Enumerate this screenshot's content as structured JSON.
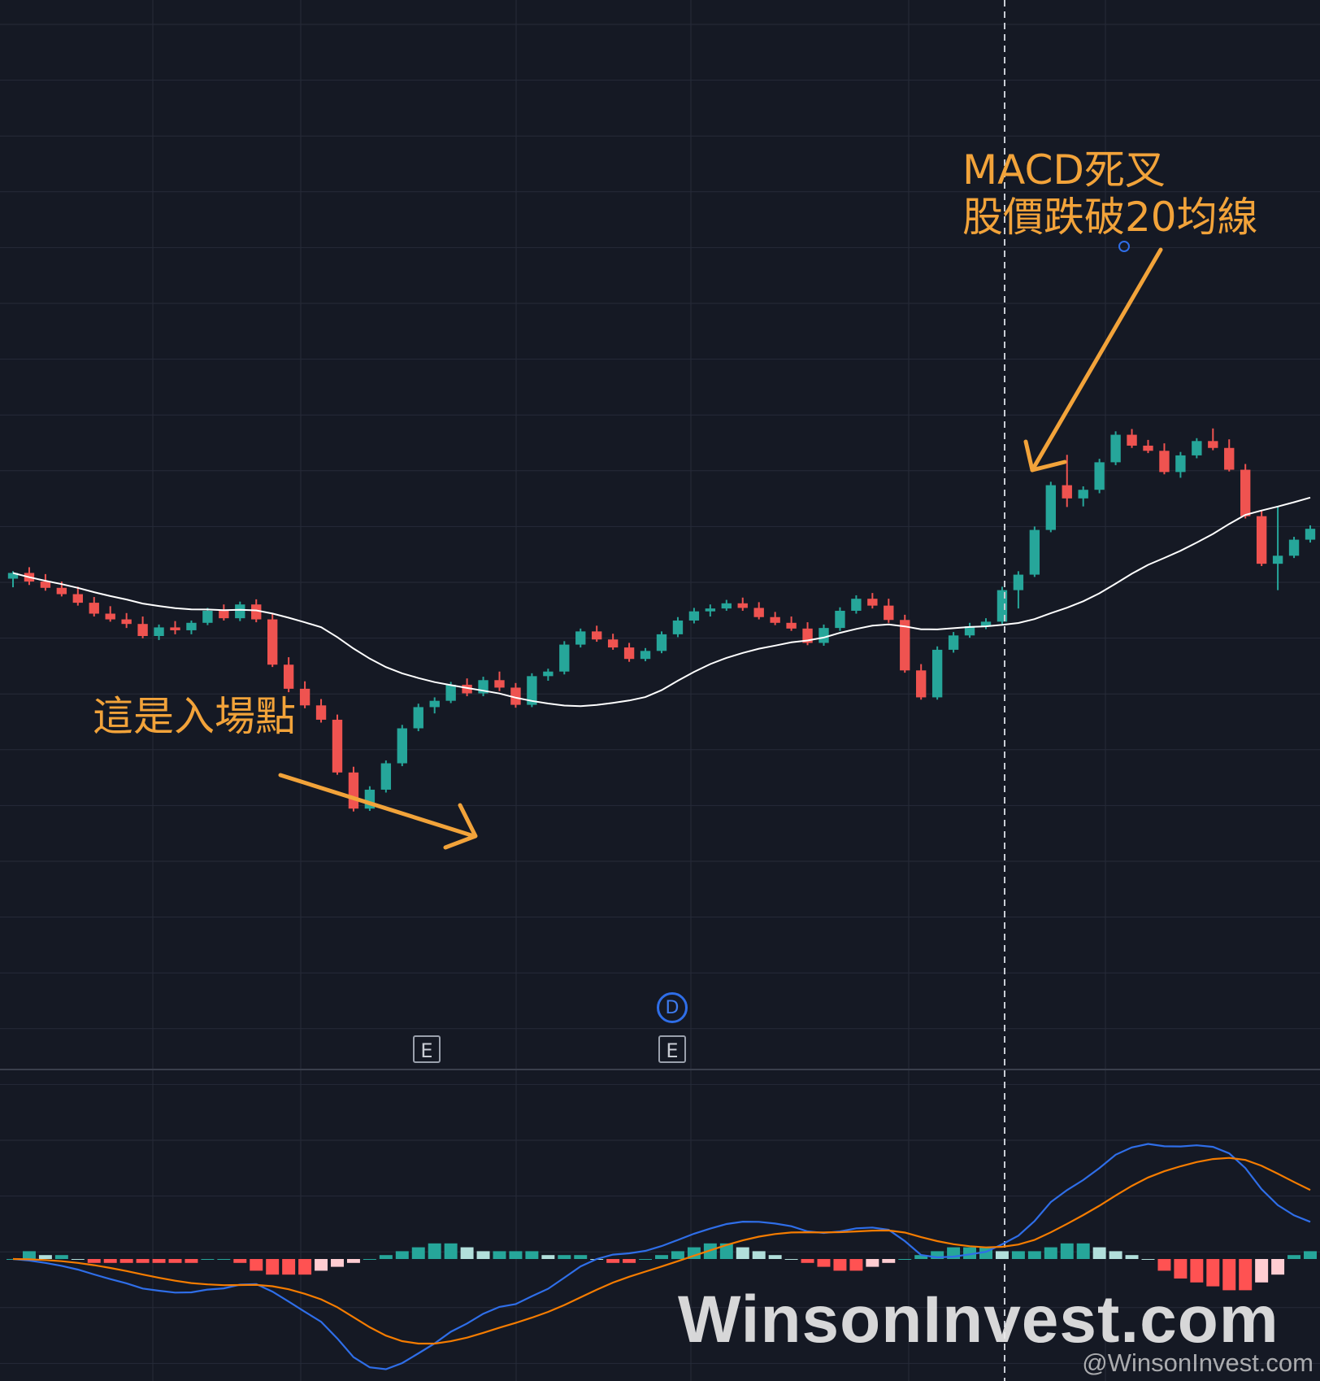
{
  "annotations": {
    "entry_label": "這是入場點",
    "exit_label_line1": "MACD死叉",
    "exit_label_line2": "股價跌破20均線"
  },
  "event_markers": {
    "earnings_1": "E",
    "earnings_2": "E",
    "dividend": "D"
  },
  "watermark": {
    "main": "WinsonInvest.com",
    "handle": "@WinsonInvest.com"
  },
  "colors": {
    "background": "#151924",
    "grid": "#262b38",
    "up": "#26a69a",
    "down": "#ef5350",
    "ma20": "#ffffff",
    "macd": "#2962ff",
    "signal": "#f57c00",
    "hist_up_strong": "#26a69a",
    "hist_up_weak": "#b2dfdb",
    "hist_down_strong": "#ff5252",
    "hist_down_weak": "#ffcdd2",
    "annotation": "#f2a33a"
  },
  "chart_data": [
    {
      "type": "candlestick",
      "overlay": "MA20",
      "price_range": [
        0,
        100
      ],
      "candles": [
        {
          "o": 70.0,
          "h": 71.3,
          "l": 68.5,
          "c": 71.0
        },
        {
          "o": 71.0,
          "h": 72.0,
          "l": 68.9,
          "c": 69.5
        },
        {
          "o": 69.5,
          "h": 70.8,
          "l": 67.9,
          "c": 68.4
        },
        {
          "o": 68.4,
          "h": 69.5,
          "l": 66.9,
          "c": 67.3
        },
        {
          "o": 67.3,
          "h": 68.6,
          "l": 65.3,
          "c": 65.8
        },
        {
          "o": 65.8,
          "h": 66.8,
          "l": 63.4,
          "c": 63.9
        },
        {
          "o": 63.9,
          "h": 65.2,
          "l": 62.5,
          "c": 62.9
        },
        {
          "o": 62.9,
          "h": 64.0,
          "l": 61.4,
          "c": 62.1
        },
        {
          "o": 62.1,
          "h": 63.4,
          "l": 59.6,
          "c": 60.0
        },
        {
          "o": 60.0,
          "h": 62.0,
          "l": 59.3,
          "c": 61.5
        },
        {
          "o": 61.5,
          "h": 62.6,
          "l": 60.3,
          "c": 61.0
        },
        {
          "o": 61.0,
          "h": 62.7,
          "l": 60.3,
          "c": 62.3
        },
        {
          "o": 62.3,
          "h": 64.9,
          "l": 61.9,
          "c": 64.4
        },
        {
          "o": 64.4,
          "h": 65.5,
          "l": 62.7,
          "c": 63.1
        },
        {
          "o": 63.1,
          "h": 66.0,
          "l": 62.6,
          "c": 65.5
        },
        {
          "o": 65.5,
          "h": 66.4,
          "l": 62.4,
          "c": 62.9
        },
        {
          "o": 62.9,
          "h": 63.9,
          "l": 54.6,
          "c": 55.0
        },
        {
          "o": 55.0,
          "h": 56.3,
          "l": 50.2,
          "c": 50.8
        },
        {
          "o": 50.8,
          "h": 52.1,
          "l": 47.4,
          "c": 47.9
        },
        {
          "o": 47.9,
          "h": 49.0,
          "l": 44.9,
          "c": 45.4
        },
        {
          "o": 45.4,
          "h": 46.3,
          "l": 35.8,
          "c": 36.2
        },
        {
          "o": 36.2,
          "h": 37.2,
          "l": 29.4,
          "c": 29.9
        },
        {
          "o": 29.9,
          "h": 33.8,
          "l": 29.5,
          "c": 33.2
        },
        {
          "o": 33.2,
          "h": 38.3,
          "l": 32.7,
          "c": 37.8
        },
        {
          "o": 37.8,
          "h": 44.5,
          "l": 37.3,
          "c": 43.9
        },
        {
          "o": 43.9,
          "h": 48.2,
          "l": 43.4,
          "c": 47.6
        },
        {
          "o": 47.6,
          "h": 49.3,
          "l": 46.5,
          "c": 48.7
        },
        {
          "o": 48.7,
          "h": 52.0,
          "l": 48.3,
          "c": 51.5
        },
        {
          "o": 51.5,
          "h": 52.6,
          "l": 49.5,
          "c": 50.0
        },
        {
          "o": 50.0,
          "h": 52.9,
          "l": 49.5,
          "c": 52.3
        },
        {
          "o": 52.3,
          "h": 53.8,
          "l": 50.4,
          "c": 51.0
        },
        {
          "o": 51.0,
          "h": 51.8,
          "l": 47.5,
          "c": 48.0
        },
        {
          "o": 48.0,
          "h": 53.5,
          "l": 47.6,
          "c": 53.0
        },
        {
          "o": 53.0,
          "h": 54.3,
          "l": 52.2,
          "c": 53.8
        },
        {
          "o": 53.8,
          "h": 59.1,
          "l": 53.3,
          "c": 58.5
        },
        {
          "o": 58.5,
          "h": 61.3,
          "l": 58.0,
          "c": 60.8
        },
        {
          "o": 60.8,
          "h": 61.8,
          "l": 59.0,
          "c": 59.4
        },
        {
          "o": 59.4,
          "h": 60.4,
          "l": 57.6,
          "c": 58.0
        },
        {
          "o": 58.0,
          "h": 58.8,
          "l": 55.5,
          "c": 56.0
        },
        {
          "o": 56.0,
          "h": 57.9,
          "l": 55.6,
          "c": 57.4
        },
        {
          "o": 57.4,
          "h": 60.8,
          "l": 57.0,
          "c": 60.3
        },
        {
          "o": 60.3,
          "h": 63.3,
          "l": 59.8,
          "c": 62.7
        },
        {
          "o": 62.7,
          "h": 64.9,
          "l": 62.2,
          "c": 64.3
        },
        {
          "o": 64.3,
          "h": 65.5,
          "l": 63.4,
          "c": 64.8
        },
        {
          "o": 64.8,
          "h": 66.3,
          "l": 64.4,
          "c": 65.7
        },
        {
          "o": 65.7,
          "h": 66.7,
          "l": 64.4,
          "c": 64.9
        },
        {
          "o": 64.9,
          "h": 65.9,
          "l": 62.9,
          "c": 63.3
        },
        {
          "o": 63.3,
          "h": 64.2,
          "l": 61.9,
          "c": 62.3
        },
        {
          "o": 62.3,
          "h": 63.4,
          "l": 60.9,
          "c": 61.3
        },
        {
          "o": 61.3,
          "h": 62.4,
          "l": 58.4,
          "c": 58.8
        },
        {
          "o": 58.8,
          "h": 62.0,
          "l": 58.3,
          "c": 61.4
        },
        {
          "o": 61.4,
          "h": 65.0,
          "l": 60.9,
          "c": 64.4
        },
        {
          "o": 64.4,
          "h": 67.1,
          "l": 63.9,
          "c": 66.5
        },
        {
          "o": 66.5,
          "h": 67.5,
          "l": 64.8,
          "c": 65.3
        },
        {
          "o": 65.3,
          "h": 66.5,
          "l": 62.3,
          "c": 62.8
        },
        {
          "o": 62.8,
          "h": 63.7,
          "l": 53.6,
          "c": 54.0
        },
        {
          "o": 54.0,
          "h": 55.1,
          "l": 48.9,
          "c": 49.3
        },
        {
          "o": 49.3,
          "h": 58.2,
          "l": 48.9,
          "c": 57.6
        },
        {
          "o": 57.6,
          "h": 60.7,
          "l": 57.1,
          "c": 60.1
        },
        {
          "o": 60.1,
          "h": 62.3,
          "l": 59.7,
          "c": 61.7
        },
        {
          "o": 61.7,
          "h": 63.1,
          "l": 61.2,
          "c": 62.5
        },
        {
          "o": 62.5,
          "h": 68.6,
          "l": 62.1,
          "c": 68.0
        },
        {
          "o": 68.0,
          "h": 71.3,
          "l": 64.8,
          "c": 70.7
        },
        {
          "o": 70.7,
          "h": 79.1,
          "l": 70.3,
          "c": 78.5
        },
        {
          "o": 78.5,
          "h": 86.9,
          "l": 78.1,
          "c": 86.3
        },
        {
          "o": 86.3,
          "h": 91.6,
          "l": 82.5,
          "c": 84.0
        },
        {
          "o": 84.0,
          "h": 86.1,
          "l": 82.6,
          "c": 85.5
        },
        {
          "o": 85.5,
          "h": 90.9,
          "l": 84.9,
          "c": 90.3
        },
        {
          "o": 90.3,
          "h": 95.7,
          "l": 89.8,
          "c": 95.1
        },
        {
          "o": 95.1,
          "h": 96.1,
          "l": 92.8,
          "c": 93.2
        },
        {
          "o": 93.2,
          "h": 94.2,
          "l": 91.9,
          "c": 92.3
        },
        {
          "o": 92.3,
          "h": 93.6,
          "l": 88.2,
          "c": 88.6
        },
        {
          "o": 88.6,
          "h": 92.1,
          "l": 87.6,
          "c": 91.5
        },
        {
          "o": 91.5,
          "h": 94.5,
          "l": 91.0,
          "c": 94.0
        },
        {
          "o": 94.0,
          "h": 96.2,
          "l": 92.4,
          "c": 92.8
        },
        {
          "o": 92.8,
          "h": 94.3,
          "l": 88.7,
          "c": 89.0
        },
        {
          "o": 89.0,
          "h": 90.0,
          "l": 80.5,
          "c": 80.9
        },
        {
          "o": 80.9,
          "h": 81.8,
          "l": 72.2,
          "c": 72.6
        },
        {
          "o": 72.6,
          "h": 82.6,
          "l": 68.0,
          "c": 74.0
        },
        {
          "o": 74.0,
          "h": 77.3,
          "l": 73.6,
          "c": 76.8
        },
        {
          "o": 76.8,
          "h": 79.3,
          "l": 76.3,
          "c": 78.7
        }
      ]
    },
    {
      "type": "macd",
      "lines": [
        "MACD",
        "Signal"
      ],
      "histogram": [
        0.0,
        0.2,
        0.1,
        0.1,
        0.0,
        -0.1,
        -0.1,
        -0.1,
        -0.1,
        -0.1,
        -0.1,
        -0.1,
        0.0,
        0.0,
        -0.1,
        -0.3,
        -0.4,
        -0.4,
        -0.4,
        -0.3,
        -0.2,
        -0.1,
        0.0,
        0.1,
        0.2,
        0.3,
        0.4,
        0.4,
        0.3,
        0.2,
        0.2,
        0.2,
        0.2,
        0.1,
        0.1,
        0.1,
        0.0,
        -0.1,
        -0.1,
        0.0,
        0.1,
        0.2,
        0.3,
        0.4,
        0.4,
        0.3,
        0.2,
        0.1,
        0.0,
        -0.1,
        -0.2,
        -0.3,
        -0.3,
        -0.2,
        -0.1,
        0.0,
        0.1,
        0.2,
        0.3,
        0.3,
        0.3,
        0.2,
        0.2,
        0.2,
        0.3,
        0.4,
        0.4,
        0.3,
        0.2,
        0.1,
        0.0,
        -0.3,
        -0.5,
        -0.6,
        -0.7,
        -0.8,
        -0.8,
        -0.6,
        -0.4,
        0.1,
        0.2
      ]
    }
  ]
}
